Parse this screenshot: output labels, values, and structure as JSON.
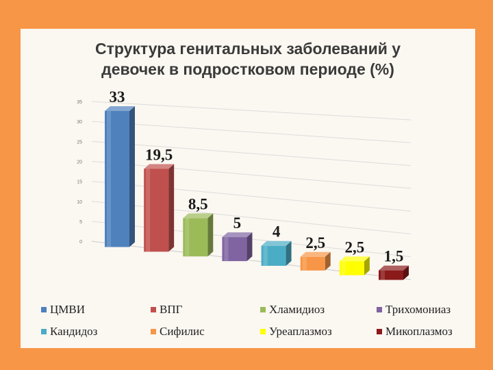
{
  "slide": {
    "title": "Структура генитальных заболеваний у\nдевочек в подростковом периоде  (%)"
  },
  "chart_data": {
    "type": "bar",
    "title": "Структура генитальных заболеваний у девочек в подростковом периоде  (%)",
    "categories": [
      "ЦМВИ",
      "ВПГ",
      "Хламидиоз",
      "Трихомониаз",
      "Кандидоз",
      "Сифилис",
      "Уреаплазмоз",
      "Микоплазмоз"
    ],
    "values": [
      33,
      19.5,
      8.5,
      5,
      4,
      2.5,
      2.5,
      1.5
    ],
    "value_labels": [
      "33",
      "19,5",
      "8,5",
      "5",
      "4",
      "2,5",
      "2,5",
      "1,5"
    ],
    "colors": [
      "#4f81bd",
      "#c0504d",
      "#9bbb59",
      "#8064a2",
      "#4bacc6",
      "#f79646",
      "#ffff00",
      "#8b1a1a"
    ],
    "yticks": [
      "0",
      "5",
      "10",
      "15",
      "20",
      "25",
      "30",
      "35"
    ],
    "ylim": [
      0,
      35
    ],
    "grid": true,
    "legend_position": "bottom"
  }
}
